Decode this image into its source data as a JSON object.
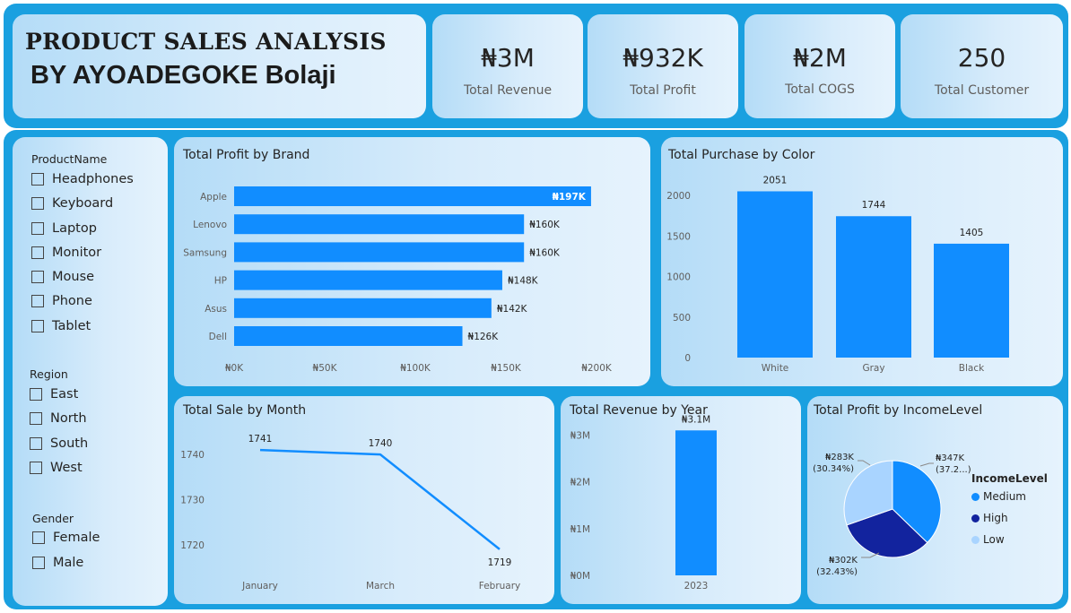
{
  "header": {
    "title": "PRODUCT SALES ANALYSIS",
    "author": "BY AYOADEGOKE Bolaji"
  },
  "kpis": [
    {
      "value": "₦3M",
      "label": "Total Revenue"
    },
    {
      "value": "₦932K",
      "label": "Total Profit"
    },
    {
      "value": "₦2M",
      "label": "Total COGS"
    },
    {
      "value": "250",
      "label": "Total Customer"
    }
  ],
  "slicers": {
    "product": {
      "title": "ProductName",
      "items": [
        "Headphones",
        "Keyboard",
        "Laptop",
        "Monitor",
        "Mouse",
        "Phone",
        "Tablet"
      ]
    },
    "region": {
      "title": "Region",
      "items": [
        "East",
        "North",
        "South",
        "West"
      ]
    },
    "gender": {
      "title": "Gender",
      "items": [
        "Female",
        "Male"
      ]
    }
  },
  "colors": {
    "accent": "#118dff",
    "dark_blue": "#12239e",
    "light_blue": "#a9d4ff",
    "frame": "#1aa0e0"
  },
  "chart_data": [
    {
      "id": "profit_by_brand",
      "type": "bar",
      "orientation": "horizontal",
      "title": "Total Profit by Brand",
      "categories": [
        "Apple",
        "Lenovo",
        "Samsung",
        "HP",
        "Asus",
        "Dell"
      ],
      "values": [
        197,
        160,
        160,
        148,
        142,
        126
      ],
      "value_unit": "thousand ₦",
      "data_labels": [
        "₦197K",
        "₦160K",
        "₦160K",
        "₦148K",
        "₦142K",
        "₦126K"
      ],
      "xlim": [
        0,
        200
      ],
      "xticks": [
        0,
        50,
        100,
        150,
        200
      ],
      "xtick_labels": [
        "₦0K",
        "₦50K",
        "₦100K",
        "₦150K",
        "₦200K"
      ]
    },
    {
      "id": "purchase_by_color",
      "type": "bar",
      "title": "Total Purchase by Color",
      "categories": [
        "White",
        "Gray",
        "Black"
      ],
      "values": [
        2051,
        1744,
        1405
      ],
      "ylim": [
        0,
        2200
      ],
      "yticks": [
        0,
        500,
        1000,
        1500,
        2000
      ],
      "ytick_labels": [
        "0",
        "500",
        "1000",
        "1500",
        "2000"
      ]
    },
    {
      "id": "sale_by_month",
      "type": "line",
      "title": "Total Sale by Month",
      "categories": [
        "January",
        "March",
        "February"
      ],
      "values": [
        1741,
        1740,
        1719
      ],
      "ylim": [
        1716,
        1744
      ],
      "yticks": [
        1720,
        1730,
        1740
      ],
      "ytick_labels": [
        "1720",
        "1730",
        "1740"
      ]
    },
    {
      "id": "revenue_by_year",
      "type": "bar",
      "title": "Total Revenue by Year",
      "categories": [
        "2023"
      ],
      "values": [
        3.1
      ],
      "value_unit": "million ₦",
      "data_labels": [
        "₦3.1M"
      ],
      "ylim": [
        0,
        3.45
      ],
      "yticks": [
        0,
        1,
        2,
        3
      ],
      "ytick_labels": [
        "₦0M",
        "₦1M",
        "₦2M",
        "₦3M"
      ]
    },
    {
      "id": "profit_by_income",
      "type": "pie",
      "title": "Total Profit by IncomeLevel",
      "legend_title": "IncomeLevel",
      "labels": [
        "Medium",
        "High",
        "Low"
      ],
      "values": [
        347,
        302,
        283
      ],
      "percents": [
        37.2,
        32.43,
        30.34
      ],
      "data_labels": [
        [
          "₦347K",
          "(37.2...)"
        ],
        [
          "₦302K",
          "(32.43%)"
        ],
        [
          "₦283K",
          "(30.34%)"
        ]
      ],
      "colors": [
        "#118dff",
        "#12239e",
        "#a9d4ff"
      ]
    }
  ]
}
